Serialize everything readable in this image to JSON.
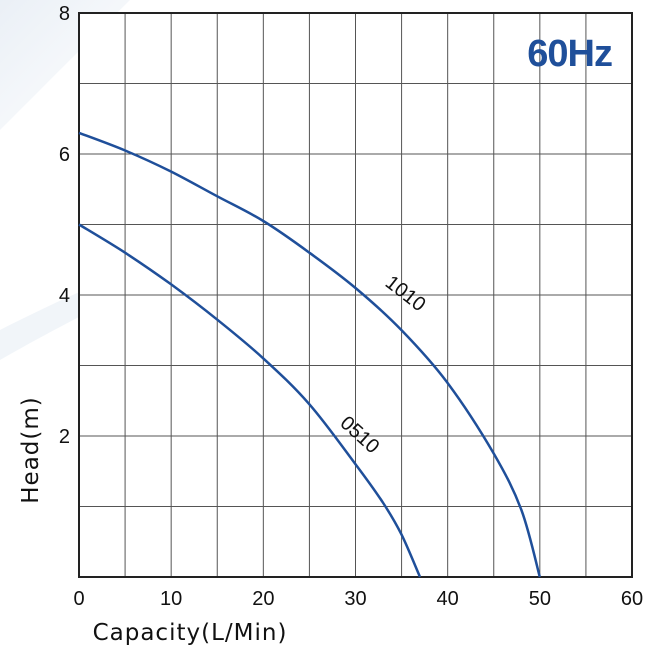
{
  "chart_data": {
    "type": "line",
    "title": "",
    "annotation": "60Hz",
    "xlabel": "Capacity(L/Min)",
    "ylabel": "Head(m)",
    "xlim": [
      0,
      60
    ],
    "ylim": [
      0,
      8
    ],
    "x_ticks": [
      {
        "value": 0,
        "label": "0"
      },
      {
        "value": 10,
        "label": "10"
      },
      {
        "value": 20,
        "label": "20"
      },
      {
        "value": 30,
        "label": "30"
      },
      {
        "value": 40,
        "label": "40"
      },
      {
        "value": 50,
        "label": "50"
      },
      {
        "value": 60,
        "label": "60"
      }
    ],
    "y_ticks": [
      {
        "value": 2,
        "label": "2"
      },
      {
        "value": 4,
        "label": "4"
      },
      {
        "value": 6,
        "label": "6"
      },
      {
        "value": 8,
        "label": "8"
      }
    ],
    "x_grid_step": 5,
    "y_grid_step": 1,
    "grid": true,
    "colors": {
      "curve": "#1f4f9a",
      "annotation": "#1f4f9a",
      "grid": "#555555",
      "frame": "#222222"
    },
    "series": [
      {
        "name": "1010",
        "x": [
          0,
          5,
          10,
          15,
          20,
          25,
          30,
          35,
          40,
          45,
          48,
          50
        ],
        "y": [
          6.3,
          6.05,
          5.75,
          5.4,
          5.05,
          4.6,
          4.1,
          3.5,
          2.75,
          1.75,
          0.95,
          0
        ]
      },
      {
        "name": "0510",
        "x": [
          0,
          5,
          10,
          15,
          20,
          25,
          30,
          33,
          35,
          37
        ],
        "y": [
          5.0,
          4.6,
          4.15,
          3.65,
          3.1,
          2.45,
          1.6,
          1.05,
          0.6,
          0
        ]
      }
    ],
    "curve_labels": [
      {
        "text": "1010",
        "x": 35,
        "y": 3.95,
        "angle": 38
      },
      {
        "text": "0510",
        "x": 30,
        "y": 1.95,
        "angle": 42
      }
    ]
  }
}
